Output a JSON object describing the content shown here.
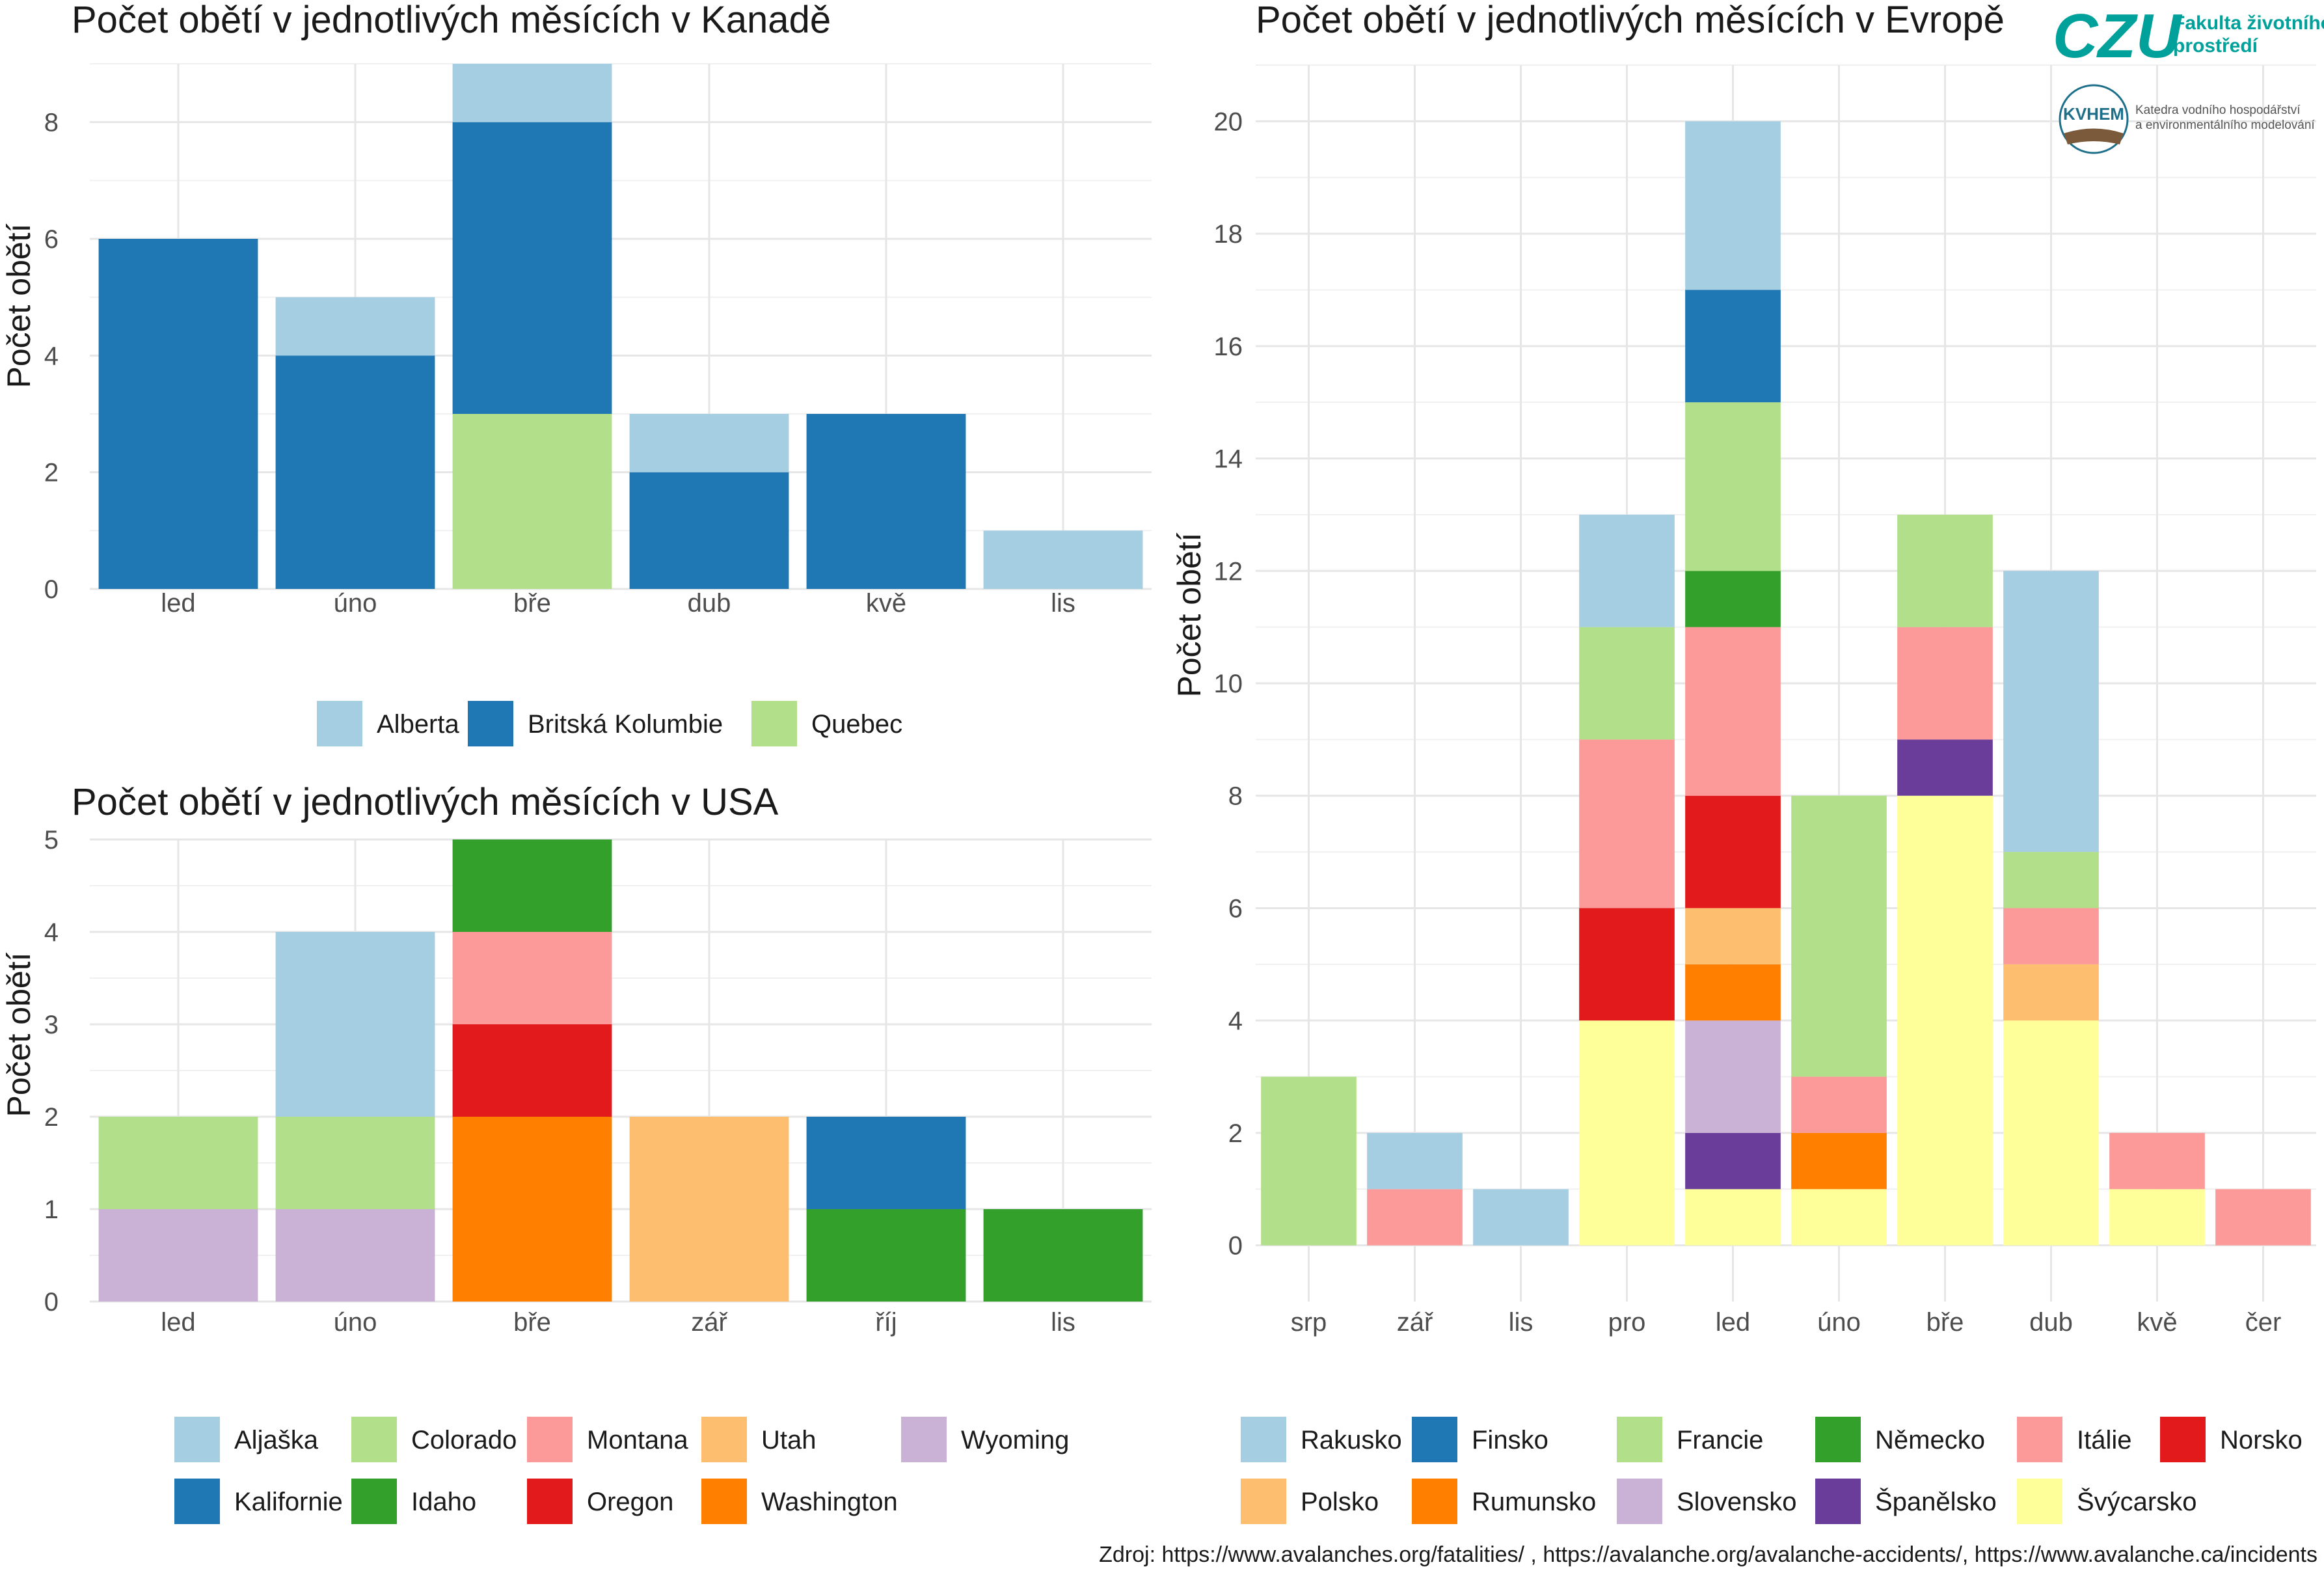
{
  "chart_data": [
    {
      "id": "canada",
      "type": "bar",
      "stacked": true,
      "title": "Počet obětí v jednotlivých měsících v Kanadě",
      "xlabel": "",
      "ylabel": "Počet obětí",
      "categories": [
        "led",
        "úno",
        "bře",
        "dub",
        "kvě",
        "lis"
      ],
      "ylim": [
        0,
        9
      ],
      "yticks": [
        0,
        2,
        4,
        6,
        8
      ],
      "grid": true,
      "legend_position": "bottom",
      "legend": [
        {
          "name": "Alberta",
          "color": "#A6CEE3"
        },
        {
          "name": "Britská Kolumbie",
          "color": "#1F78B4"
        },
        {
          "name": "Quebec",
          "color": "#B2DF8A"
        }
      ],
      "series": [
        {
          "name": "Quebec",
          "color": "#B2DF8A",
          "values": [
            0,
            0,
            3,
            0,
            0,
            0
          ]
        },
        {
          "name": "Britská Kolumbie",
          "color": "#1F78B4",
          "values": [
            6,
            4,
            5,
            2,
            3,
            0
          ]
        },
        {
          "name": "Alberta",
          "color": "#A6CEE3",
          "values": [
            0,
            1,
            1,
            1,
            0,
            1
          ]
        }
      ]
    },
    {
      "id": "usa",
      "type": "bar",
      "stacked": true,
      "title": "Počet obětí v jednotlivých měsících v USA",
      "xlabel": "",
      "ylabel": "Počet obětí",
      "categories": [
        "led",
        "úno",
        "bře",
        "zář",
        "říj",
        "lis"
      ],
      "ylim": [
        0,
        5
      ],
      "yticks": [
        0,
        1,
        2,
        3,
        4,
        5
      ],
      "grid": true,
      "legend_position": "bottom",
      "legend": [
        {
          "name": "Aljaška",
          "color": "#A6CEE3"
        },
        {
          "name": "Colorado",
          "color": "#B2DF8A"
        },
        {
          "name": "Montana",
          "color": "#FB9A99"
        },
        {
          "name": "Utah",
          "color": "#FDBF6F"
        },
        {
          "name": "Wyoming",
          "color": "#CAB2D6"
        },
        {
          "name": "Kalifornie",
          "color": "#1F78B4"
        },
        {
          "name": "Idaho",
          "color": "#33A02C"
        },
        {
          "name": "Oregon",
          "color": "#E31A1C"
        },
        {
          "name": "Washington",
          "color": "#FF7F00"
        }
      ],
      "series": [
        {
          "name": "Wyoming",
          "color": "#CAB2D6",
          "values": [
            1,
            1,
            0,
            0,
            0,
            0
          ]
        },
        {
          "name": "Washington",
          "color": "#FF7F00",
          "values": [
            0,
            0,
            2,
            0,
            0,
            0
          ]
        },
        {
          "name": "Utah",
          "color": "#FDBF6F",
          "values": [
            0,
            0,
            0,
            2,
            0,
            0
          ]
        },
        {
          "name": "Oregon",
          "color": "#E31A1C",
          "values": [
            0,
            0,
            1,
            0,
            0,
            0
          ]
        },
        {
          "name": "Montana",
          "color": "#FB9A99",
          "values": [
            0,
            0,
            1,
            0,
            0,
            0
          ]
        },
        {
          "name": "Idaho",
          "color": "#33A02C",
          "values": [
            0,
            0,
            1,
            0,
            1,
            1
          ]
        },
        {
          "name": "Kalifornie",
          "color": "#1F78B4",
          "values": [
            0,
            0,
            0,
            0,
            1,
            0
          ]
        },
        {
          "name": "Colorado",
          "color": "#B2DF8A",
          "values": [
            1,
            1,
            0,
            0,
            0,
            0
          ]
        },
        {
          "name": "Aljaška",
          "color": "#A6CEE3",
          "values": [
            0,
            2,
            0,
            0,
            0,
            0
          ]
        }
      ]
    },
    {
      "id": "evropa",
      "type": "bar",
      "stacked": true,
      "title": "Počet obětí v jednotlivých měsících v Evropě",
      "xlabel": "",
      "ylabel": "Počet obětí",
      "categories": [
        "srp",
        "zář",
        "lis",
        "pro",
        "led",
        "úno",
        "bře",
        "dub",
        "kvě",
        "čer"
      ],
      "ylim": [
        -1,
        21
      ],
      "yticks": [
        0,
        2,
        4,
        6,
        8,
        10,
        12,
        14,
        16,
        18,
        20
      ],
      "grid": true,
      "legend_position": "bottom",
      "legend": [
        {
          "name": "Rakusko",
          "color": "#A6CEE3"
        },
        {
          "name": "Finsko",
          "color": "#1F78B4"
        },
        {
          "name": "Francie",
          "color": "#B2DF8A"
        },
        {
          "name": "Německo",
          "color": "#33A02C"
        },
        {
          "name": "Itálie",
          "color": "#FB9A99"
        },
        {
          "name": "Norsko",
          "color": "#E31A1C"
        },
        {
          "name": "Polsko",
          "color": "#FDBF6F"
        },
        {
          "name": "Rumunsko",
          "color": "#FF7F00"
        },
        {
          "name": "Slovensko",
          "color": "#CAB2D6"
        },
        {
          "name": "Španělsko",
          "color": "#6A3D9A"
        },
        {
          "name": "Švýcarsko",
          "color": "#FFFF99"
        }
      ],
      "series": [
        {
          "name": "Švýcarsko",
          "color": "#FFFF99",
          "values": [
            0,
            0,
            0,
            4,
            1,
            1,
            8,
            4,
            1,
            0
          ]
        },
        {
          "name": "Španělsko",
          "color": "#6A3D9A",
          "values": [
            0,
            0,
            0,
            0,
            1,
            0,
            1,
            0,
            0,
            0
          ]
        },
        {
          "name": "Slovensko",
          "color": "#CAB2D6",
          "values": [
            0,
            0,
            0,
            0,
            2,
            0,
            0,
            0,
            0,
            0
          ]
        },
        {
          "name": "Rumunsko",
          "color": "#FF7F00",
          "values": [
            0,
            0,
            0,
            0,
            1,
            1,
            0,
            0,
            0,
            0
          ]
        },
        {
          "name": "Polsko",
          "color": "#FDBF6F",
          "values": [
            0,
            0,
            0,
            0,
            1,
            0,
            0,
            1,
            0,
            0
          ]
        },
        {
          "name": "Norsko",
          "color": "#E31A1C",
          "values": [
            0,
            0,
            0,
            2,
            2,
            0,
            0,
            0,
            0,
            0
          ]
        },
        {
          "name": "Itálie",
          "color": "#FB9A99",
          "values": [
            0,
            1,
            0,
            3,
            3,
            1,
            2,
            1,
            1,
            1
          ]
        },
        {
          "name": "Německo",
          "color": "#33A02C",
          "values": [
            0,
            0,
            0,
            0,
            1,
            0,
            0,
            0,
            0,
            0
          ]
        },
        {
          "name": "Francie",
          "color": "#B2DF8A",
          "values": [
            3,
            0,
            0,
            2,
            3,
            5,
            2,
            1,
            0,
            0
          ]
        },
        {
          "name": "Finsko",
          "color": "#1F78B4",
          "values": [
            0,
            0,
            0,
            0,
            2,
            0,
            0,
            0,
            0,
            0
          ]
        },
        {
          "name": "Rakusko",
          "color": "#A6CEE3",
          "values": [
            0,
            1,
            1,
            2,
            3,
            0,
            0,
            5,
            0,
            0
          ]
        }
      ]
    }
  ],
  "logos": {
    "czu": {
      "text": "CZU",
      "line1": "Fakulta životního",
      "line2": "prostředí",
      "color": "#00A19A"
    },
    "kvhem": {
      "text": "KVHEM",
      "line1": "Katedra vodního hospodářství",
      "line2": "a environmentálního modelování",
      "color": "#1d6f8a"
    }
  },
  "source": "Zdroj: https://www.avalanches.org/fatalities/ , https://avalanche.org/avalanche-accidents/, https://www.avalanche.ca/incidents"
}
